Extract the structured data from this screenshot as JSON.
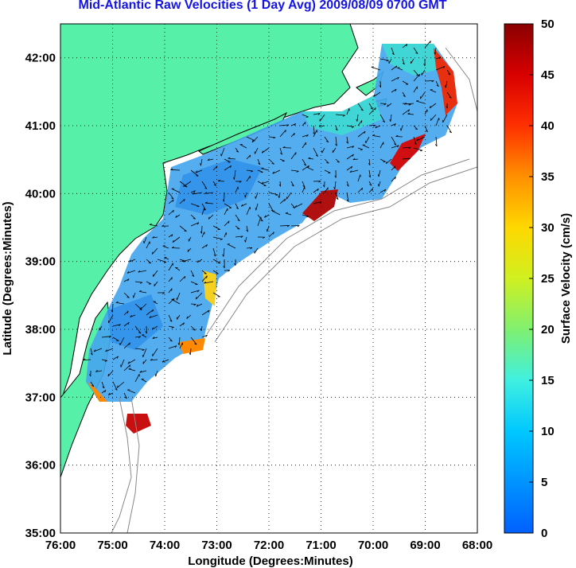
{
  "title": "Mid-Atlantic Raw Velocities (1 Day Avg) 2009/08/09 0700 GMT",
  "x_axis": {
    "label": "Longitude (Degrees:Minutes)",
    "ticks": [
      "76:00",
      "75:00",
      "74:00",
      "73:00",
      "72:00",
      "71:00",
      "70:00",
      "69:00",
      "68:00"
    ]
  },
  "y_axis": {
    "label": "Latitude (Degrees:Minutes)",
    "ticks": [
      "35:00",
      "36:00",
      "37:00",
      "38:00",
      "39:00",
      "40:00",
      "41:00",
      "42:00"
    ]
  },
  "colorbar": {
    "label": "Surface Velocity (cm/s)",
    "ticks": [
      "0",
      "5",
      "10",
      "15",
      "20",
      "25",
      "30",
      "35",
      "40",
      "45",
      "50"
    ],
    "min": 0,
    "max": 50
  },
  "colors": {
    "land": "#56f0a8",
    "title": "#1414e6",
    "ocean_low": "#3fa0f0",
    "ocean_high": "#b01010"
  }
}
